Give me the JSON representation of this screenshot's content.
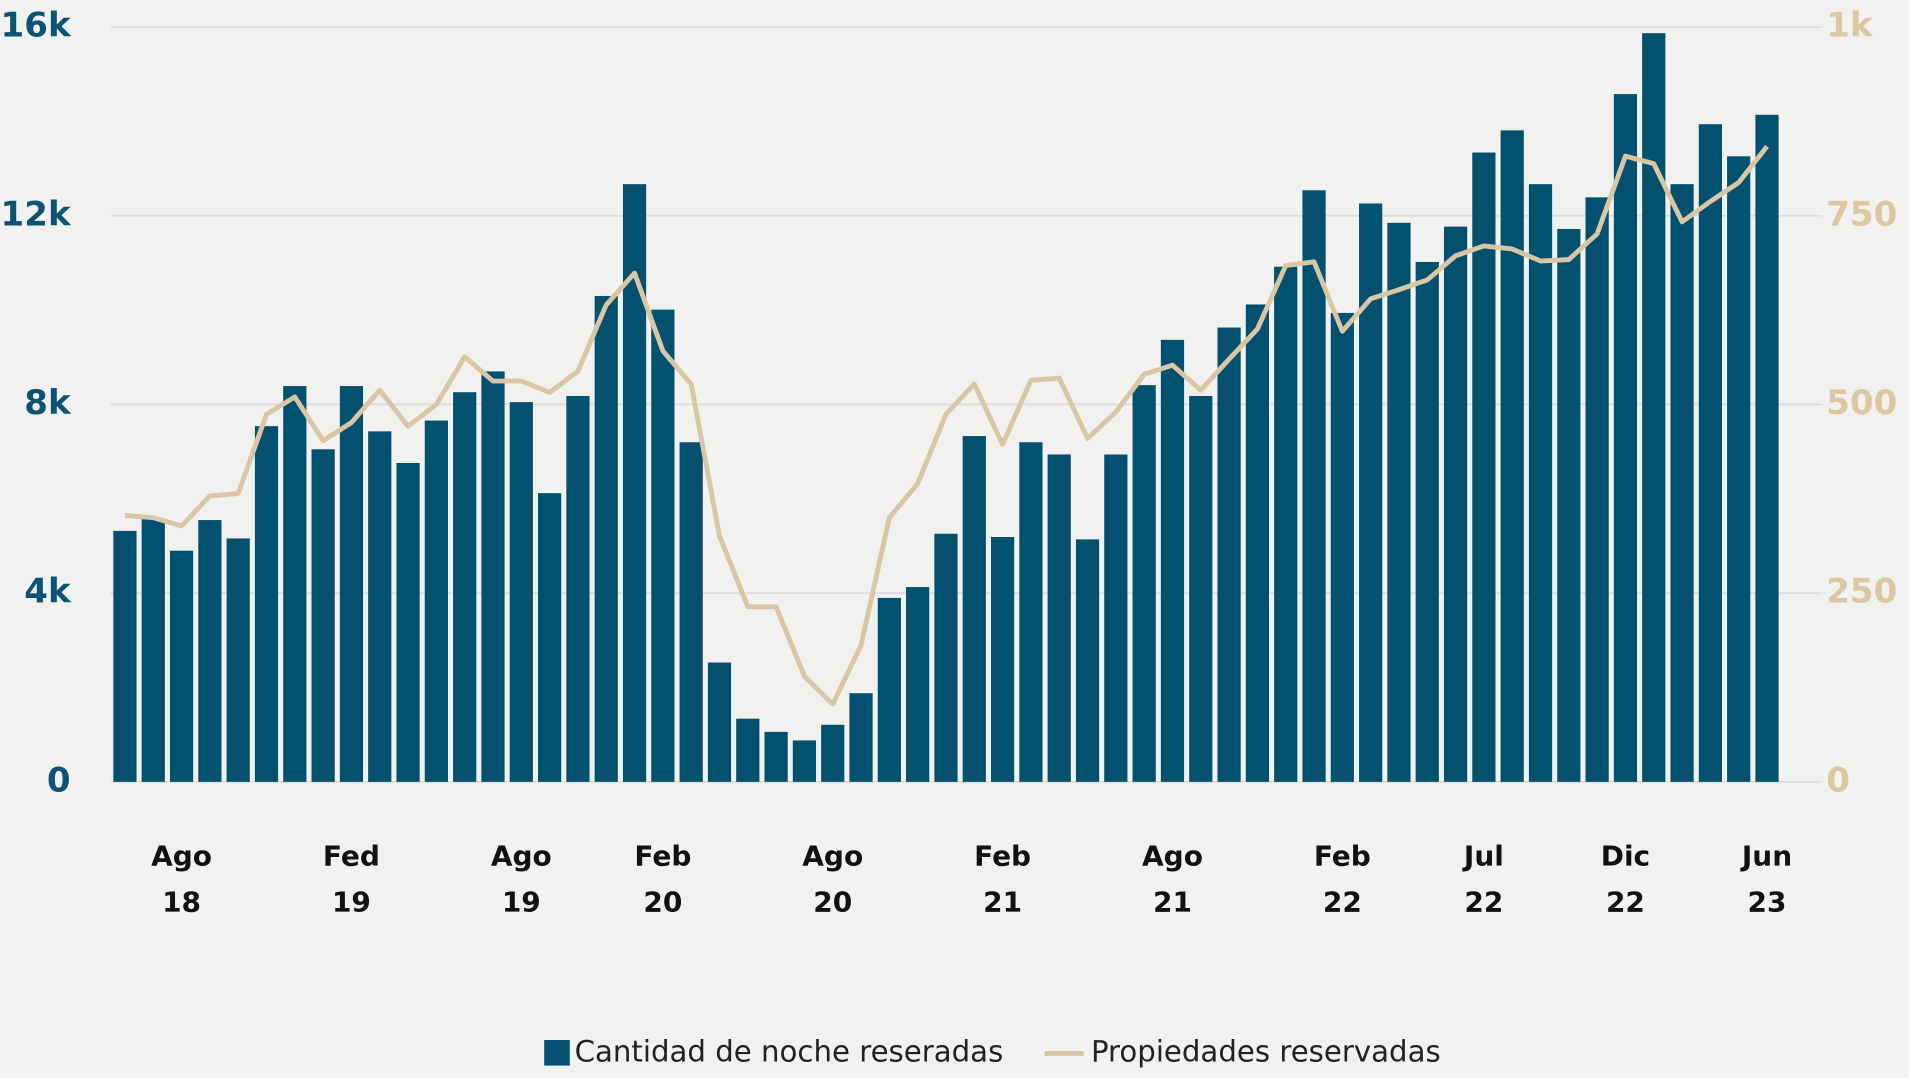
{
  "chart_data": {
    "type": "bar_line",
    "categories": [
      null,
      null,
      "Ago 18",
      null,
      null,
      null,
      null,
      null,
      "Fed 19",
      null,
      null,
      null,
      null,
      null,
      "Ago 19",
      null,
      null,
      null,
      null,
      "Feb 20",
      null,
      null,
      null,
      null,
      null,
      "Ago 20",
      null,
      null,
      null,
      null,
      null,
      "Feb 21",
      null,
      null,
      null,
      null,
      null,
      "Ago 21",
      null,
      null,
      null,
      null,
      null,
      "Feb 22",
      null,
      null,
      null,
      null,
      "Jul 22",
      null,
      null,
      null,
      null,
      "Dic 22",
      null,
      null,
      null,
      null,
      "Jun 23"
    ],
    "series": [
      {
        "name": "Cantidad de noche reseradas",
        "color": "#04506f",
        "type": "bar",
        "values": [
          5320,
          5570,
          4900,
          5550,
          5160,
          7540,
          8390,
          7050,
          8390,
          7430,
          6760,
          7660,
          8260,
          8700,
          8050,
          6120,
          8180,
          10300,
          12670,
          10010,
          7200,
          2530,
          1340,
          1060,
          880,
          1210,
          1880,
          3900,
          4130,
          5260,
          7330,
          5190,
          7200,
          6940,
          5140,
          6940,
          8410,
          9370,
          8180,
          9630,
          10120,
          10920,
          12540,
          9940,
          12260,
          11850,
          11020,
          11770,
          13340,
          13810,
          12670,
          11720,
          12390,
          14580,
          15870,
          12670,
          13940,
          13260,
          14140
        ]
      },
      {
        "name": "Propiedades reservadas",
        "color": "#d9c6a5",
        "type": "line",
        "axis": "y2",
        "values": [
          353,
          350,
          339,
          379,
          382,
          487,
          510,
          452,
          476,
          519,
          471,
          500,
          563,
          531,
          531,
          516,
          544,
          632,
          674,
          571,
          527,
          326,
          232,
          232,
          140,
          103,
          181,
          350,
          395,
          487,
          527,
          447,
          532,
          535,
          455,
          490,
          540,
          552,
          519,
          560,
          600,
          684,
          689,
          597,
          640,
          652,
          665,
          697,
          710,
          706,
          690,
          692,
          726,
          829,
          819,
          742,
          769,
          794,
          842
        ]
      }
    ],
    "ylim": [
      0,
      16000
    ],
    "yticks": [
      0,
      {
        "value": 4000,
        "label": "4k"
      },
      {
        "value": 8000,
        "label": "8k"
      },
      {
        "value": 12000,
        "label": "12k"
      },
      {
        "value": 16000,
        "label": "16k"
      }
    ],
    "y2lim": [
      0,
      1000
    ],
    "y2ticks": [
      0,
      250,
      500,
      750,
      {
        "value": 1000,
        "label": "1k"
      }
    ],
    "grid": true,
    "legend": "bottom"
  }
}
